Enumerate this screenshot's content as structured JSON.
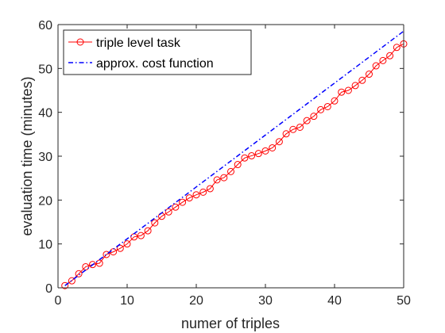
{
  "chart_data": {
    "type": "line",
    "title": "",
    "xlabel": "numer of triples",
    "ylabel": "evaluation time (minutes)",
    "xlim": [
      0,
      50
    ],
    "ylim": [
      0,
      60
    ],
    "xticks": [
      "0",
      "10",
      "20",
      "30",
      "40",
      "50"
    ],
    "yticks": [
      "0",
      "10",
      "20",
      "30",
      "40",
      "50",
      "60"
    ],
    "grid": false,
    "legend_position": "top-left",
    "series": [
      {
        "name": "triple level task",
        "color": "#ff0000",
        "style": "solid-circle-markers",
        "x": [
          1,
          2,
          3,
          4,
          5,
          6,
          7,
          8,
          9,
          10,
          11,
          12,
          13,
          14,
          15,
          16,
          17,
          18,
          19,
          20,
          21,
          22,
          23,
          24,
          25,
          26,
          27,
          28,
          29,
          30,
          31,
          32,
          33,
          34,
          35,
          36,
          37,
          38,
          39,
          40,
          41,
          42,
          43,
          44,
          45,
          46,
          47,
          48,
          49,
          50
        ],
        "y": [
          0.5,
          1.6,
          3.2,
          4.8,
          5.3,
          5.6,
          7.6,
          8.2,
          9.0,
          10.0,
          11.6,
          11.9,
          13.0,
          14.8,
          16.3,
          17.3,
          18.4,
          19.5,
          20.5,
          21.2,
          21.8,
          22.6,
          24.6,
          25.1,
          26.5,
          28.1,
          29.6,
          30.1,
          30.6,
          31.2,
          31.9,
          33.3,
          35.1,
          36.1,
          36.6,
          38.1,
          39.1,
          40.6,
          41.3,
          42.6,
          44.6,
          45.0,
          46.1,
          47.3,
          48.7,
          50.6,
          51.8,
          52.9,
          54.8,
          55.6
        ]
      },
      {
        "name": "approx. cost function",
        "color": "#0000ff",
        "style": "dash-dot",
        "x": [
          1,
          50
        ],
        "y": [
          0.5,
          58.5
        ]
      }
    ]
  }
}
